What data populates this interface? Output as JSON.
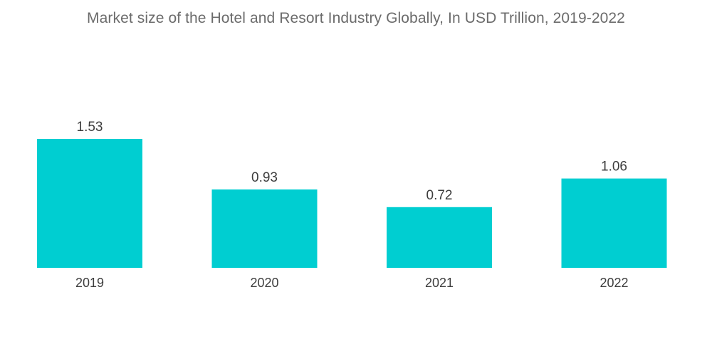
{
  "chart_data": {
    "type": "bar",
    "title": "Market size of the Hotel and Resort Industry Globally, In USD Trillion, 2019-2022",
    "categories": [
      "2019",
      "2020",
      "2021",
      "2022"
    ],
    "values": [
      1.53,
      0.93,
      0.72,
      1.06
    ],
    "value_labels": [
      "1.53",
      "0.93",
      "0.72",
      "1.06"
    ],
    "xlabel": "",
    "ylabel": "",
    "ylim": [
      0,
      1.53
    ],
    "grid": false,
    "legend": "none",
    "bar_color": "#00CED1"
  }
}
